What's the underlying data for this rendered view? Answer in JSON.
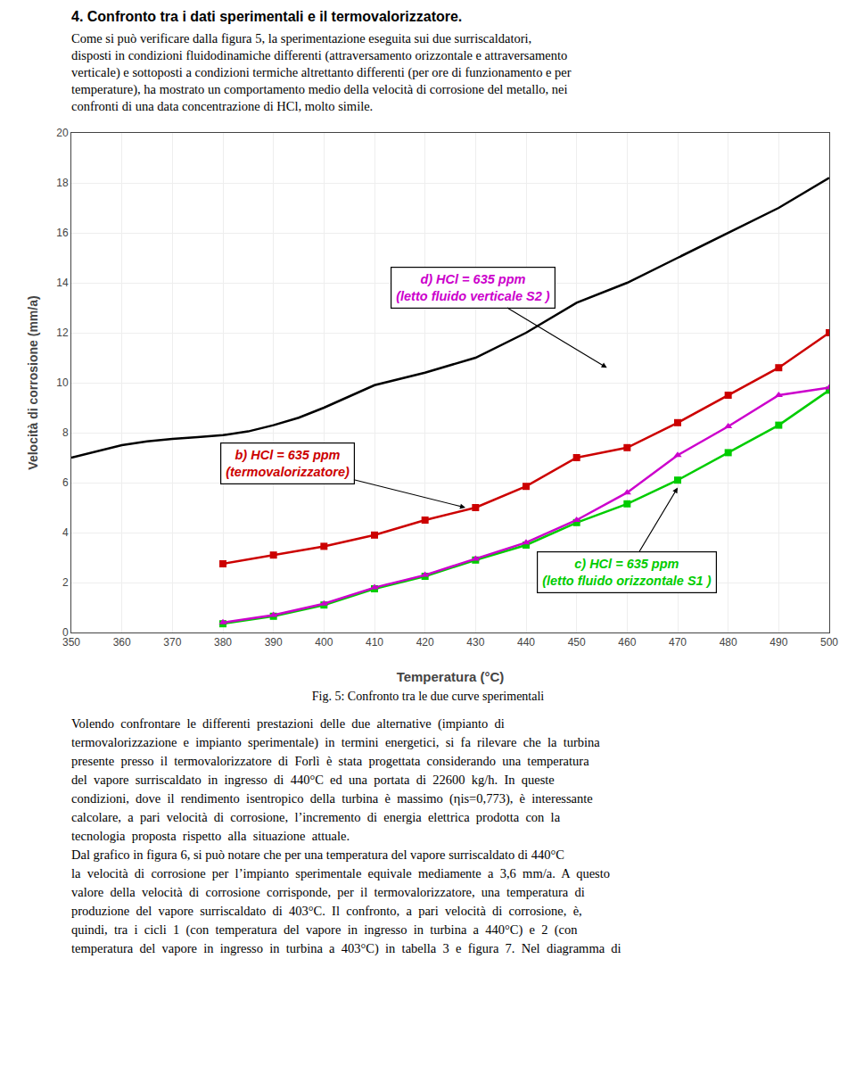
{
  "chart_data": {
    "type": "line",
    "title": "4. Confronto tra i dati sperimentali e il termovalorizzatore.",
    "intro": [
      "Come si può verificare dalla figura 5, la sperimentazione eseguita sui due surriscaldatori,",
      "disposti in condizioni fluidodinamiche differenti (attraversamento orizzontale e attraversamento",
      "verticale) e sottoposti a condizioni termiche altrettanto differenti (per ore di funzionamento e per",
      "temperature), ha mostrato un comportamento medio della velocità di corrosione del metallo, nei",
      "confronti di una data concentrazione di HCl, molto simile."
    ],
    "xlabel": "Temperatura (°C)",
    "ylabel": "Velocità di corrosione (mm/a)",
    "xlim": [
      350,
      500
    ],
    "ylim": [
      0,
      20
    ],
    "xticks": [
      350,
      360,
      370,
      380,
      390,
      400,
      410,
      420,
      430,
      440,
      450,
      460,
      470,
      480,
      490,
      500
    ],
    "yticks": [
      0,
      2,
      4,
      6,
      8,
      10,
      12,
      14,
      16,
      18,
      20
    ],
    "grid": true,
    "series": [
      {
        "color": "#000000",
        "x": [
          350,
          355,
          360,
          365,
          370,
          375,
          378,
          380,
          385,
          390,
          395,
          400,
          410,
          420,
          430,
          440,
          450,
          460,
          470,
          480,
          490,
          500
        ],
        "values": [
          7.0,
          7.25,
          7.5,
          7.65,
          7.75,
          7.82,
          7.87,
          7.9,
          8.05,
          8.3,
          8.6,
          9.0,
          9.9,
          10.4,
          11.0,
          12.0,
          13.2,
          14.0,
          15.0,
          16.0,
          17.0,
          18.2
        ]
      },
      {
        "color": "#cc0000",
        "marker": "square",
        "x": [
          380,
          390,
          400,
          410,
          420,
          430,
          440,
          450,
          460,
          470,
          480,
          490,
          500
        ],
        "values": [
          2.75,
          3.1,
          3.45,
          3.9,
          4.5,
          5.0,
          5.85,
          7.0,
          7.4,
          8.4,
          9.5,
          10.6,
          12.0
        ]
      },
      {
        "color": "#00cc00",
        "marker": "square",
        "x": [
          380,
          390,
          400,
          410,
          420,
          430,
          440,
          450,
          460,
          470,
          480,
          490,
          500
        ],
        "values": [
          0.35,
          0.65,
          1.1,
          1.75,
          2.25,
          2.9,
          3.5,
          4.4,
          5.15,
          6.1,
          7.2,
          8.3,
          9.7
        ]
      },
      {
        "color": "#cc00cc",
        "marker": "triangle-up",
        "x": [
          380,
          390,
          400,
          410,
          420,
          430,
          440,
          450,
          460,
          470,
          480,
          490,
          500
        ],
        "values": [
          0.4,
          0.7,
          1.15,
          1.8,
          2.3,
          2.95,
          3.6,
          4.5,
          5.6,
          7.1,
          8.25,
          9.5,
          9.8
        ]
      }
    ],
    "annotations": [
      {
        "text": "b) HCl = 635 ppm\n(termovalorizzatore)",
        "x": 428,
        "y": 5.0,
        "color": "#cc0000"
      },
      {
        "text": "d) HCl = 635 ppm\n(letto fluido verticale S2 )",
        "x": 456,
        "y": 10.6,
        "color": "#cc00cc"
      },
      {
        "text": "c) HCl = 635 ppm\n(letto fluido orizzontale S1 )",
        "x": 470,
        "y": 5.8,
        "color": "#00cc00"
      }
    ],
    "caption": "Fig. 5: Confronto tra le due curve sperimentali",
    "body": [
      "Volendo  confrontare  le  differenti  prestazioni  delle  due  alternative  (impianto  di",
      "termovalorizzazione  e  impianto  sperimentale)  in  termini  energetici,  si  fa  rilevare  che  la  turbina",
      "presente  presso  il  termovalorizzatore  di  Forlì  è  stata  progettata  considerando  una  temperatura",
      "del  vapore  surriscaldato  in  ingresso  di  440°C  ed  una  portata  di  22600  kg/h.  In  queste",
      "condizioni,  dove  il  rendimento  isentropico  della  turbina  è  massimo  (ηis=0,773),  è  interessante",
      "calcolare,  a  pari  velocità  di  corrosione,  l’incremento  di  energia  elettrica  prodotta  con  la",
      "tecnologia  proposta  rispetto  alla  situazione  attuale.",
      "Dal grafico in figura 6, si può notare che per una temperatura del vapore surriscaldato di 440°C",
      "la  velocità  di  corrosione  per  l’impianto  sperimentale  equivale  mediamente  a  3,6  mm/a.  A  questo",
      "valore  della  velocità  di  corrosione  corrisponde,  per  il  termovalorizzatore,  una  temperatura  di",
      "produzione  del  vapore  surriscaldato  di  403°C.  Il  confronto,  a  pari  velocità  di  corrosione,  è,",
      "quindi,  tra  i  cicli  1  (con  temperatura  del  vapore  in  ingresso  in  turbina  a  440°C)  e  2  (con",
      "temperatura  del  vapore  in  ingresso  in  turbina  a  403°C)  in  tabella  3  e  figura  7.  Nel  diagramma  di"
    ]
  }
}
